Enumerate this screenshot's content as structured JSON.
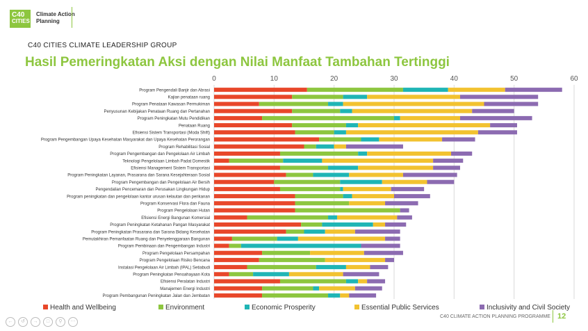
{
  "header": {
    "logo_line1": "C40",
    "logo_line2": "CITIES",
    "brand_line1": "Climate Action",
    "brand_line2": "Planning"
  },
  "group_label": "C40 CITIES CLIMATE LEADERSHIP GROUP",
  "title": "Hasil Pemeringkatan Aksi dengan Nilai Manfaat Tambahan Tertinggi",
  "footer": {
    "programme": "C40 CLIMATE ACTION PLANNING PROGRAMME",
    "page": "12"
  },
  "colors": {
    "Health and Wellbeing": "#e8472a",
    "Environment": "#8dc63f",
    "Economic Prosperity": "#1fb5b5",
    "Essential Public Services": "#f2c230",
    "Inclusivity and Civil Society": "#8c6bb1"
  },
  "chart_data": {
    "type": "bar",
    "orientation": "horizontal",
    "stacked": true,
    "xlim": [
      0,
      60
    ],
    "xticks": [
      0,
      10,
      20,
      30,
      40,
      50,
      60
    ],
    "grid": true,
    "legend_position": "bottom",
    "categories": [
      "Program Pengendali Banjir dan Abrasi",
      "Kajian penataan ruang",
      "Program Penataan Kawasan Permukiman",
      "Penyusunan Kebijakan Penataan Ruang dan Pertanahan",
      "Program Peningkatan Mutu Pendidikan",
      "Penataan Ruang",
      "Efisiensi Sistem Transportasi (Moda Shift)",
      "Program Pengembangan Upaya Kesehatan Masyarakat dan Upaya Kesehatan Perorangan",
      "Program Rehabilitasi Sosial",
      "Program Pengembangan dan Pengelolaan Air Limbah",
      "Teknologi Pengelolaan Limbah Padat Domestik",
      "Efisiensi Management Sistem Transportasi",
      "Program Peningkatan Layanan, Prasarana dan Sarana Kesejahteraan Sosial",
      "Program Pengembangan dan Pengelolaan Air Bersih",
      "Pengendalian Pencemaran dan Perusakan Lingkungan Hidup",
      "Program peningkatan dan pengelolaan kantor urusan kelautan dan perikanan",
      "Program Konservasi Flora dan Fauna",
      "Program Pengelolaan Hutan",
      "Efisiensi Energi Bangunan Komersial",
      "Program Peningkatan Ketahanan Pangan Masyarakat",
      "Program Peningkatan Prasarana dan Sarana Bidang Kesehatan",
      "Pemutakhiran Pemanfaatan Ruang dan Penyelenggaraan Bangunan",
      "Program Pembinaan dan Pengembangan Industri",
      "Program Pengelolaan Persampahan",
      "Program Pengelolaan Risiko Bencana",
      "Instalasi Pengelolaan Air Limbah (IPAL) Setiabudi",
      "Program Peningkatan Penoahayaan Kota",
      "Efisiensi Peralatan Industri",
      "Manajemen Energi Industri",
      "Program Pembangunan Peningkatan Jalan dan Jembatan"
    ],
    "series": [
      {
        "name": "Health and Wellbeing",
        "values": [
          15.5,
          13,
          7.5,
          13,
          8,
          13,
          13.5,
          17.5,
          15,
          11,
          2.5,
          11,
          12,
          10,
          11,
          13.5,
          13.5,
          13.5,
          5.5,
          14.5,
          12,
          3,
          2.5,
          8,
          7.5,
          5.5,
          2.5,
          11,
          8,
          8
        ]
      },
      {
        "name": "Environment",
        "values": [
          16,
          8.5,
          11.5,
          8,
          22,
          9,
          6.5,
          7,
          2,
          13,
          9,
          8,
          4.5,
          11,
          10,
          8,
          9,
          17.5,
          13.5,
          3.5,
          3,
          7.5,
          2,
          8,
          11,
          11.5,
          4,
          11,
          8.5,
          11
        ]
      },
      {
        "name": "Economic Prosperity",
        "values": [
          7.5,
          4,
          2.5,
          2,
          1,
          2,
          2,
          3,
          3,
          1.5,
          6.5,
          5,
          6,
          7,
          0.5,
          1.5,
          0,
          0,
          1.5,
          8.5,
          3.5,
          3.5,
          20,
          0,
          0,
          5,
          6,
          2,
          1,
          2
        ]
      },
      {
        "name": "Essential Public Services",
        "values": [
          9.5,
          15.5,
          23.5,
          20,
          10,
          22,
          22,
          10.5,
          2,
          14,
          18.5,
          12.5,
          9,
          7.5,
          8,
          7,
          6,
          0,
          10,
          2,
          5,
          14.5,
          0,
          9,
          10,
          4,
          9,
          1.5,
          6,
          1.5
        ]
      },
      {
        "name": "Inclusivity and Civil Society",
        "values": [
          9.5,
          13,
          9,
          7,
          12,
          4.5,
          6.5,
          5.5,
          9.5,
          3.5,
          5,
          4.5,
          9,
          4.5,
          5.5,
          6,
          5.5,
          1.5,
          2.5,
          3.5,
          7.5,
          2.5,
          6.5,
          6.5,
          1.5,
          3,
          6,
          3,
          4.5,
          4.5
        ]
      }
    ]
  }
}
